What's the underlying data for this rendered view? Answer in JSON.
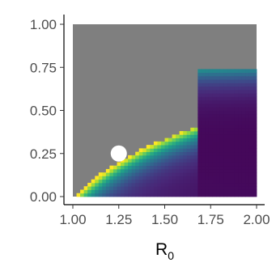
{
  "chart_data": {
    "type": "heatmap",
    "xlabel": "R",
    "xlabel_subscript": "0",
    "ylabel": "",
    "xlim": [
      1.0,
      2.0
    ],
    "ylim": [
      0.0,
      1.0
    ],
    "x_ticks": [
      1.0,
      1.25,
      1.5,
      1.75,
      2.0
    ],
    "x_tick_labels": [
      "1.00",
      "1.25",
      "1.50",
      "1.75",
      "2.00"
    ],
    "y_ticks": [
      0.0,
      0.25,
      0.5,
      0.75,
      1.0
    ],
    "y_tick_labels": [
      "0.00",
      "0.25",
      "0.50",
      "0.75",
      "1.00"
    ],
    "grid": false,
    "legend": "none",
    "colormap": "viridis",
    "region_colors": {
      "infeasible": "#7f7f7f",
      "boundary_high": "#fde725",
      "interior_low": "#440154"
    },
    "grid_resolution": {
      "nx": 50,
      "ny": 50
    },
    "boundary": {
      "curve": "1 - 1/R0",
      "plateau_y": 0.74,
      "plateau_start_x": 1.7
    },
    "marker": {
      "x": 1.25,
      "y": 0.25,
      "color": "#ffffff"
    }
  }
}
